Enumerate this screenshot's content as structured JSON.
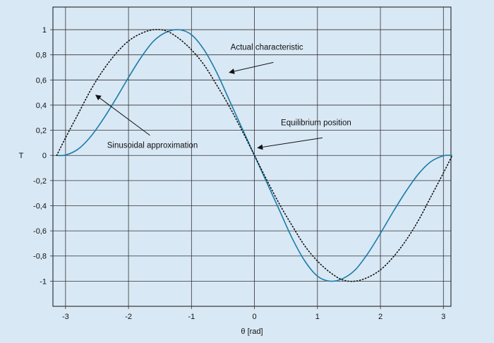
{
  "chart_data": {
    "type": "line",
    "xlabel": "θ [rad]",
    "ylabel": "T",
    "xlim": [
      -3.2,
      3.12
    ],
    "ylim": [
      -1.2,
      1.18
    ],
    "grid": true,
    "x_ticks": [
      {
        "value": -3,
        "label": "-3"
      },
      {
        "value": -2,
        "label": "-2"
      },
      {
        "value": -1,
        "label": "-1"
      },
      {
        "value": 0,
        "label": "0"
      },
      {
        "value": 1,
        "label": "1"
      },
      {
        "value": 2,
        "label": "2"
      },
      {
        "value": 3,
        "label": "3"
      }
    ],
    "y_ticks": [
      {
        "value": 1,
        "label": "1"
      },
      {
        "value": 0.8,
        "label": "0,8"
      },
      {
        "value": 0.6,
        "label": "0,6"
      },
      {
        "value": 0.4,
        "label": "0,4"
      },
      {
        "value": 0.2,
        "label": "0,2"
      },
      {
        "value": 0,
        "label": "0"
      },
      {
        "value": -0.2,
        "label": "-0,2"
      },
      {
        "value": -0.4,
        "label": "-0,4"
      },
      {
        "value": -0.6,
        "label": "-0,6"
      },
      {
        "value": -0.8,
        "label": "-0,8"
      },
      {
        "value": -1,
        "label": "-1"
      }
    ],
    "series": [
      {
        "style": "solid",
        "color": "#1a7ca8",
        "x": [
          -3.14,
          -3.0,
          -2.8,
          -2.6,
          -2.4,
          -2.2,
          -2.0,
          -1.8,
          -1.6,
          -1.4,
          -1.2,
          -1.0,
          -0.8,
          -0.6,
          -0.4,
          -0.2,
          0.0,
          0.2,
          0.4,
          0.6,
          0.8,
          1.0,
          1.2,
          1.4,
          1.6,
          1.8,
          2.0,
          2.2,
          2.4,
          2.6,
          2.8,
          3.0,
          3.14
        ],
        "y": [
          0.0,
          0.003,
          0.05,
          0.15,
          0.29,
          0.45,
          0.62,
          0.78,
          0.91,
          0.98,
          1.0,
          0.96,
          0.84,
          0.66,
          0.44,
          0.22,
          0.0,
          -0.22,
          -0.44,
          -0.66,
          -0.84,
          -0.96,
          -1.0,
          -0.98,
          -0.91,
          -0.78,
          -0.62,
          -0.45,
          -0.29,
          -0.15,
          -0.05,
          -0.003,
          0.0
        ]
      },
      {
        "style": "dotted",
        "color": "#111111",
        "x": [
          -3.14,
          -3.0,
          -2.8,
          -2.6,
          -2.4,
          -2.2,
          -2.0,
          -1.8,
          -1.6,
          -1.4,
          -1.2,
          -1.0,
          -0.8,
          -0.6,
          -0.4,
          -0.2,
          0.0,
          0.2,
          0.4,
          0.6,
          0.8,
          1.0,
          1.2,
          1.4,
          1.6,
          1.8,
          2.0,
          2.2,
          2.4,
          2.6,
          2.8,
          3.0,
          3.14
        ],
        "y": [
          0.0,
          0.14,
          0.33,
          0.52,
          0.68,
          0.81,
          0.91,
          0.97,
          1.0,
          0.99,
          0.93,
          0.84,
          0.72,
          0.56,
          0.39,
          0.2,
          0.0,
          -0.2,
          -0.39,
          -0.56,
          -0.72,
          -0.84,
          -0.93,
          -0.99,
          -1.0,
          -0.97,
          -0.91,
          -0.81,
          -0.68,
          -0.52,
          -0.33,
          -0.14,
          0.0
        ]
      }
    ],
    "annotations": [
      {
        "text": "Actual characteristic",
        "text_x": -0.38,
        "text_y": 0.84,
        "tail_x": 0.3,
        "tail_y": 0.74,
        "head_x": -0.4,
        "head_y": 0.66
      },
      {
        "text": "Equilibrium position",
        "text_x": 0.42,
        "text_y": 0.24,
        "tail_x": 1.08,
        "tail_y": 0.14,
        "head_x": 0.05,
        "head_y": 0.06
      },
      {
        "text": "Sinusoidal approximation",
        "text_x": -2.34,
        "text_y": 0.06,
        "tail_x": -1.66,
        "tail_y": 0.16,
        "head_x": -2.52,
        "head_y": 0.48
      }
    ]
  }
}
